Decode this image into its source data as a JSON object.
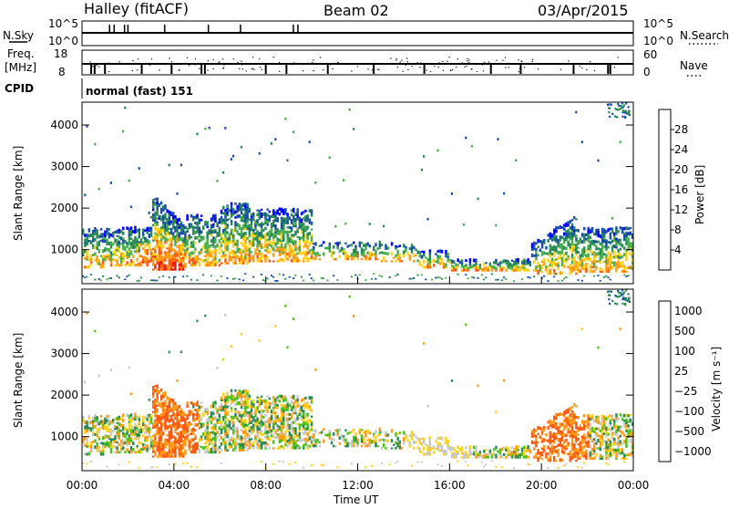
{
  "header": {
    "title": "Halley (fitACF)",
    "beam": "Beam 02",
    "date": "03/Apr/2015"
  },
  "strips": {
    "nsky_label": "N.Sky",
    "nsky_ticks": [
      "10^5",
      "10^0"
    ],
    "nsearch_label": "N.Search",
    "nsearch_ticks": [
      "10^5",
      "10^0"
    ],
    "freq_label": "Freq.",
    "freq_unit": "[MHz]",
    "freq_ticks": [
      "18",
      "8"
    ],
    "nave_label": "Nave",
    "nave_ticks": [
      "60",
      "0"
    ],
    "cpid_label": "CPID",
    "cpid_value": "normal (fast) 151"
  },
  "colors": {
    "power": [
      "#0000ff",
      "#1c4fa8",
      "#2a8a55",
      "#4caf50",
      "#ffd21a",
      "#ff9b1a",
      "#ff5a14",
      "#e21a1a"
    ],
    "velocity": [
      "#e21a1a",
      "#ff5a14",
      "#ff9b1a",
      "#ffd21a",
      "#c8c8c8",
      "#4fc41a",
      "#2a8a55",
      "#1c4fa8"
    ]
  },
  "chart_data": [
    {
      "type": "heatmap",
      "panel": "power",
      "ylabel": "Slant Range [km]",
      "yticks": [
        "1000",
        "2000",
        "3000",
        "4000"
      ],
      "ylim": [
        180,
        4550
      ],
      "xlim": [
        0,
        24
      ],
      "colorbar_label": "Power [dB]",
      "colorbar_ticks": [
        "4",
        "8",
        "12",
        "16",
        "20",
        "24",
        "28"
      ],
      "colorbar_range": [
        0,
        32
      ]
    },
    {
      "type": "heatmap",
      "panel": "velocity",
      "xlabel": "Time UT",
      "xticks": [
        "00:00",
        "04:00",
        "08:00",
        "12:00",
        "16:00",
        "20:00",
        "00:00"
      ],
      "ylabel": "Slant Range [km]",
      "yticks": [
        "1000",
        "2000",
        "3000",
        "4000"
      ],
      "ylim": [
        180,
        4550
      ],
      "xlim": [
        0,
        24
      ],
      "colorbar_label": "Velocity [m s⁻¹]",
      "colorbar_ticks": [
        "1000",
        "500",
        "100",
        "25",
        "−25",
        "−100",
        "−500",
        "−1000"
      ]
    }
  ]
}
